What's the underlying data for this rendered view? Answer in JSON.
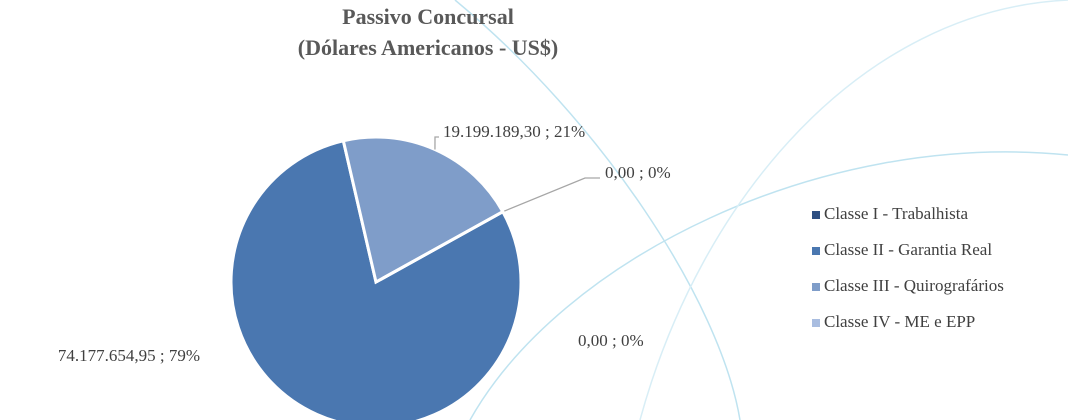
{
  "chart_data": {
    "type": "pie",
    "title": "Passivo Concursal",
    "subtitle": "(Dólares Americanos - US$)",
    "categories": [
      "Classe I - Trabalhista",
      "Classe II - Garantia Real",
      "Classe III - Quirografários",
      "Classe IV - ME e EPP"
    ],
    "values": [
      0,
      74177654.95,
      19199189.3,
      0
    ],
    "value_labels": [
      "0,00 ; 0%",
      "74.177.654,95 ; 79%",
      "19.199.189,30 ; 21%",
      "0,00 ; 0%"
    ],
    "colors": [
      "#2e4f82",
      "#4a77b0",
      "#7f9dc9",
      "#a9bde0"
    ],
    "legend": "right"
  }
}
